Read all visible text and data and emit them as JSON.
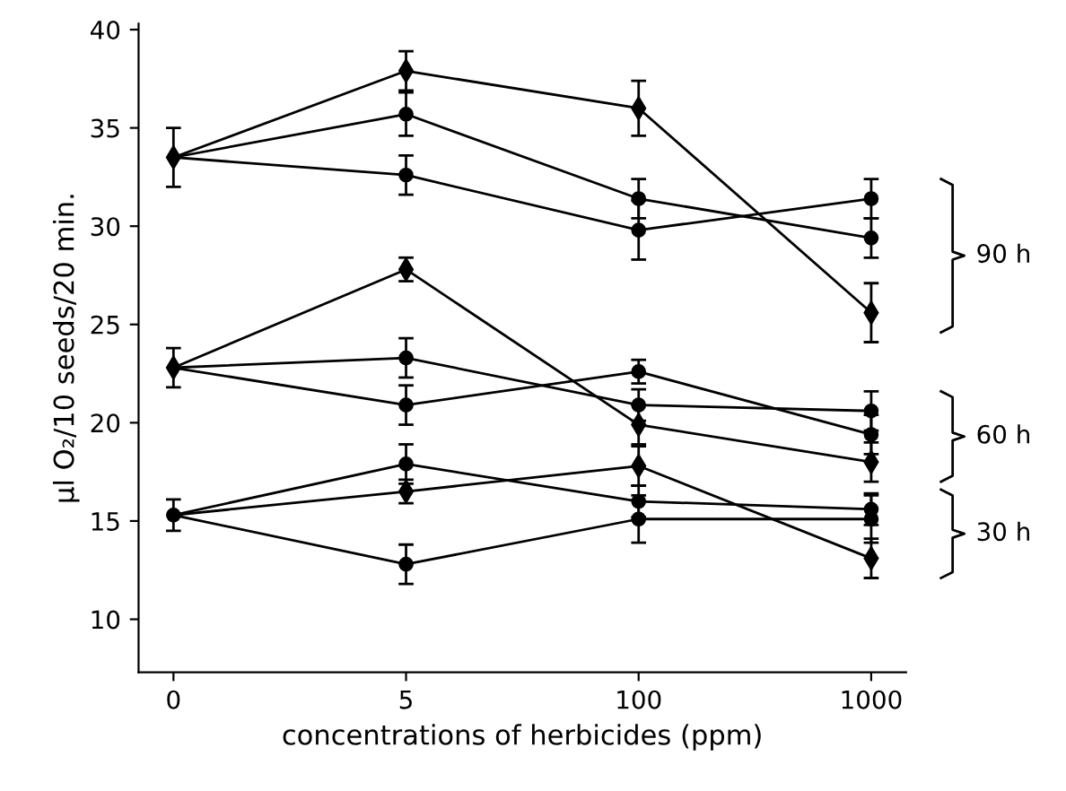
{
  "chart_data": {
    "type": "line",
    "xlabel": "concentrations of herbicides (ppm)",
    "ylabel": "µl O₂/10 seeds/20 min.",
    "categories": [
      "0",
      "5",
      "100",
      "1000"
    ],
    "ylim": [
      7.3,
      40.3
    ],
    "yticks": [
      10,
      15,
      20,
      25,
      30,
      35,
      40
    ],
    "grid": false,
    "legend": false,
    "line_style": "solid",
    "series": [
      {
        "color": "#000000",
        "marker": "diamond",
        "values": [
          33.5,
          37.9,
          36.0,
          25.6
        ],
        "errors": [
          1.5,
          1.0,
          1.4,
          1.5
        ]
      },
      {
        "color": "#000000",
        "marker": "circle",
        "values": [
          33.5,
          35.7,
          31.4,
          29.4
        ],
        "errors": [
          null,
          1.1,
          1.0,
          1.0
        ]
      },
      {
        "color": "#000000",
        "marker": "circle",
        "values": [
          33.5,
          32.6,
          29.8,
          31.4
        ],
        "errors": [
          null,
          1.0,
          1.5,
          1.0
        ]
      },
      {
        "color": "#000000",
        "marker": "diamond",
        "values": [
          22.8,
          27.8,
          19.9,
          18.0
        ],
        "errors": [
          1.0,
          0.6,
          1.0,
          1.0
        ]
      },
      {
        "color": "#000000",
        "marker": "circle",
        "values": [
          22.8,
          23.3,
          20.9,
          20.6
        ],
        "errors": [
          null,
          1.0,
          0.8,
          1.0
        ]
      },
      {
        "color": "#000000",
        "marker": "circle",
        "values": [
          22.8,
          20.9,
          22.6,
          19.4
        ],
        "errors": [
          null,
          1.0,
          0.6,
          1.0
        ]
      },
      {
        "color": "#000000",
        "marker": "circle",
        "values": [
          15.3,
          17.9,
          16.0,
          15.6
        ],
        "errors": [
          0.8,
          1.0,
          0.8,
          0.8
        ]
      },
      {
        "color": "#000000",
        "marker": "diamond",
        "values": [
          15.3,
          16.5,
          17.8,
          13.1
        ],
        "errors": [
          null,
          0.6,
          1.0,
          1.0
        ]
      },
      {
        "color": "#000000",
        "marker": "circle",
        "values": [
          15.3,
          12.8,
          15.1,
          15.1
        ],
        "errors": [
          null,
          1.0,
          1.2,
          1.2
        ]
      }
    ],
    "annotations": [
      "90 h",
      "60 h",
      "30 h"
    ]
  }
}
